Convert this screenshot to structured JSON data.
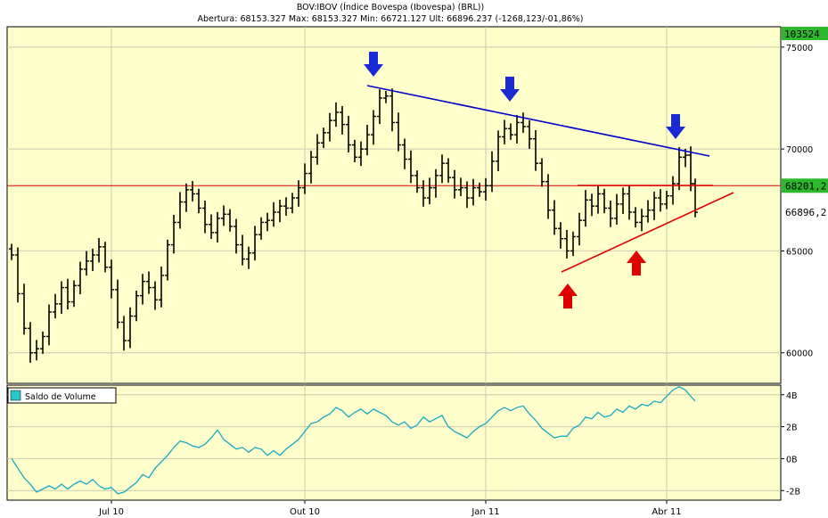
{
  "header": {
    "title": "BOV:IBOV (Índice Bovespa (Ibovespa) (BRL))",
    "quote": "Abertura: 68153.327 Max: 68153.327 Min: 66721.127 Ult: 66896.237 (-1268,123/-01,86%)"
  },
  "chart_data": [
    {
      "type": "candlestick",
      "title": "BOV:IBOV (Índice Bovespa (Ibovespa) (BRL))",
      "ylim": [
        58500,
        76000
      ],
      "y_ticks": [
        "75000",
        "70000",
        "65000",
        "60000"
      ],
      "x_ticks": [
        "Jul 10",
        "Out 10",
        "Jan 11",
        "Abr 11"
      ],
      "price_badges": {
        "top": "103524",
        "level": "68201,2",
        "last": "66896,2"
      },
      "colors": {
        "background": "#ffffcc",
        "bars": "#000000",
        "trend_down": "#0000cc",
        "trend_up": "#dd0000",
        "hline": "#dd0000",
        "arrow_blue": "#1a2bd6",
        "arrow_red": "#e00000",
        "badge_green": "#2eb82e"
      },
      "series": [
        {
          "values": [
            [
              5,
              64800
            ],
            [
              12,
              62900
            ],
            [
              19,
              61200
            ],
            [
              26,
              60000
            ],
            [
              33,
              60200
            ],
            [
              40,
              60800
            ],
            [
              47,
              62000
            ],
            [
              54,
              62400
            ],
            [
              61,
              63200
            ],
            [
              68,
              62500
            ],
            [
              75,
              63300
            ],
            [
              82,
              64100
            ],
            [
              89,
              64500
            ],
            [
              96,
              64800
            ],
            [
              103,
              65200
            ],
            [
              110,
              64200
            ],
            [
              117,
              63100
            ],
            [
              124,
              61500
            ],
            [
              131,
              60600
            ],
            [
              138,
              61800
            ],
            [
              145,
              62800
            ],
            [
              152,
              63500
            ],
            [
              159,
              63200
            ],
            [
              166,
              62600
            ],
            [
              173,
              63800
            ],
            [
              180,
              65300
            ],
            [
              187,
              66400
            ],
            [
              194,
              67400
            ],
            [
              201,
              68000
            ],
            [
              208,
              67800
            ],
            [
              215,
              67100
            ],
            [
              222,
              66300
            ],
            [
              229,
              65900
            ],
            [
              236,
              66600
            ],
            [
              243,
              66800
            ],
            [
              250,
              66200
            ],
            [
              257,
              65300
            ],
            [
              264,
              64600
            ],
            [
              271,
              64900
            ],
            [
              278,
              65800
            ],
            [
              285,
              66400
            ],
            [
              292,
              66500
            ],
            [
              299,
              66900
            ],
            [
              306,
              67200
            ],
            [
              313,
              67100
            ],
            [
              320,
              67600
            ],
            [
              327,
              68100
            ],
            [
              334,
              68800
            ],
            [
              341,
              69600
            ],
            [
              348,
              70300
            ],
            [
              355,
              70800
            ],
            [
              362,
              71400
            ],
            [
              369,
              71800
            ],
            [
              376,
              71200
            ],
            [
              383,
              70200
            ],
            [
              390,
              69600
            ],
            [
              397,
              70000
            ],
            [
              404,
              70700
            ],
            [
              411,
              71600
            ],
            [
              418,
              72500
            ],
            [
              425,
              72600
            ],
            [
              432,
              71300
            ],
            [
              439,
              70200
            ],
            [
              446,
              69500
            ],
            [
              453,
              68700
            ],
            [
              460,
              68100
            ],
            [
              467,
              67600
            ],
            [
              474,
              68100
            ],
            [
              481,
              68700
            ],
            [
              488,
              69300
            ],
            [
              495,
              68600
            ],
            [
              502,
              68000
            ],
            [
              509,
              68100
            ],
            [
              516,
              67600
            ],
            [
              523,
              68100
            ],
            [
              530,
              67900
            ],
            [
              537,
              68200
            ],
            [
              544,
              69400
            ],
            [
              551,
              70600
            ],
            [
              558,
              71000
            ],
            [
              565,
              70700
            ],
            [
              572,
              71300
            ],
            [
              579,
              71100
            ],
            [
              586,
              70500
            ],
            [
              593,
              69300
            ],
            [
              600,
              68400
            ],
            [
              607,
              67000
            ],
            [
              614,
              66100
            ],
            [
              621,
              65600
            ],
            [
              628,
              65000
            ],
            [
              635,
              65700
            ],
            [
              642,
              66500
            ],
            [
              649,
              67500
            ],
            [
              656,
              67200
            ],
            [
              663,
              67800
            ],
            [
              670,
              67100
            ],
            [
              677,
              66600
            ],
            [
              684,
              67300
            ],
            [
              691,
              67800
            ],
            [
              698,
              66900
            ],
            [
              705,
              66400
            ],
            [
              712,
              66700
            ],
            [
              719,
              67000
            ],
            [
              726,
              67600
            ],
            [
              733,
              67300
            ],
            [
              740,
              67700
            ],
            [
              747,
              68300
            ],
            [
              754,
              69600
            ],
            [
              761,
              69700
            ],
            [
              767,
              68300
            ],
            [
              772,
              66900
            ]
          ]
        }
      ]
    },
    {
      "type": "line",
      "legend": "Saldo de Volume",
      "y_ticks": [
        "4B",
        "2B",
        "0B",
        "-2B"
      ],
      "ylim": [
        -2.6,
        4.6
      ],
      "series": [
        {
          "name": "Saldo de Volume",
          "values": [
            [
              5,
              0
            ],
            [
              12,
              -0.6
            ],
            [
              19,
              -1.2
            ],
            [
              26,
              -1.6
            ],
            [
              33,
              -2.1
            ],
            [
              40,
              -1.9
            ],
            [
              47,
              -1.7
            ],
            [
              54,
              -1.9
            ],
            [
              61,
              -1.6
            ],
            [
              68,
              -1.9
            ],
            [
              75,
              -1.6
            ],
            [
              82,
              -1.4
            ],
            [
              89,
              -1.6
            ],
            [
              96,
              -1.3
            ],
            [
              103,
              -1.7
            ],
            [
              110,
              -1.9
            ],
            [
              117,
              -1.8
            ],
            [
              124,
              -2.2
            ],
            [
              131,
              -2.1
            ],
            [
              138,
              -1.8
            ],
            [
              145,
              -1.5
            ],
            [
              152,
              -1.0
            ],
            [
              159,
              -1.2
            ],
            [
              166,
              -0.6
            ],
            [
              173,
              -0.2
            ],
            [
              180,
              0.2
            ],
            [
              187,
              0.7
            ],
            [
              194,
              1.1
            ],
            [
              201,
              1.0
            ],
            [
              208,
              0.8
            ],
            [
              215,
              0.7
            ],
            [
              222,
              0.9
            ],
            [
              229,
              1.3
            ],
            [
              236,
              1.8
            ],
            [
              243,
              1.2
            ],
            [
              250,
              0.9
            ],
            [
              257,
              0.6
            ],
            [
              264,
              0.7
            ],
            [
              271,
              0.4
            ],
            [
              278,
              0.7
            ],
            [
              285,
              0.6
            ],
            [
              292,
              0.2
            ],
            [
              299,
              0.5
            ],
            [
              306,
              0.2
            ],
            [
              313,
              0.6
            ],
            [
              320,
              0.9
            ],
            [
              327,
              1.2
            ],
            [
              334,
              1.7
            ],
            [
              341,
              2.2
            ],
            [
              348,
              2.3
            ],
            [
              355,
              2.6
            ],
            [
              362,
              2.8
            ],
            [
              369,
              3.2
            ],
            [
              376,
              3.0
            ],
            [
              383,
              2.6
            ],
            [
              390,
              2.9
            ],
            [
              397,
              3.1
            ],
            [
              404,
              2.8
            ],
            [
              411,
              3.1
            ],
            [
              418,
              2.9
            ],
            [
              425,
              2.7
            ],
            [
              432,
              2.3
            ],
            [
              439,
              2.1
            ],
            [
              446,
              2.3
            ],
            [
              453,
              1.9
            ],
            [
              460,
              2.1
            ],
            [
              467,
              2.6
            ],
            [
              474,
              2.3
            ],
            [
              481,
              2.5
            ],
            [
              488,
              2.7
            ],
            [
              495,
              2.0
            ],
            [
              502,
              1.7
            ],
            [
              509,
              1.5
            ],
            [
              516,
              1.3
            ],
            [
              523,
              1.7
            ],
            [
              530,
              2.0
            ],
            [
              537,
              2.2
            ],
            [
              544,
              2.6
            ],
            [
              551,
              3.0
            ],
            [
              558,
              3.2
            ],
            [
              565,
              3.0
            ],
            [
              572,
              3.2
            ],
            [
              579,
              3.3
            ],
            [
              586,
              2.8
            ],
            [
              593,
              2.4
            ],
            [
              600,
              1.9
            ],
            [
              607,
              1.6
            ],
            [
              614,
              1.3
            ],
            [
              621,
              1.4
            ],
            [
              628,
              1.4
            ],
            [
              635,
              1.9
            ],
            [
              642,
              2.1
            ],
            [
              649,
              2.6
            ],
            [
              656,
              2.5
            ],
            [
              663,
              2.9
            ],
            [
              670,
              2.6
            ],
            [
              677,
              2.7
            ],
            [
              684,
              3.1
            ],
            [
              691,
              2.9
            ],
            [
              698,
              3.3
            ],
            [
              705,
              3.1
            ],
            [
              712,
              3.4
            ],
            [
              719,
              3.3
            ],
            [
              726,
              3.6
            ],
            [
              733,
              3.5
            ],
            [
              740,
              3.9
            ],
            [
              747,
              4.3
            ],
            [
              754,
              4.5
            ],
            [
              761,
              4.3
            ],
            [
              767,
              3.9
            ],
            [
              772,
              3.6
            ]
          ]
        }
      ]
    }
  ]
}
